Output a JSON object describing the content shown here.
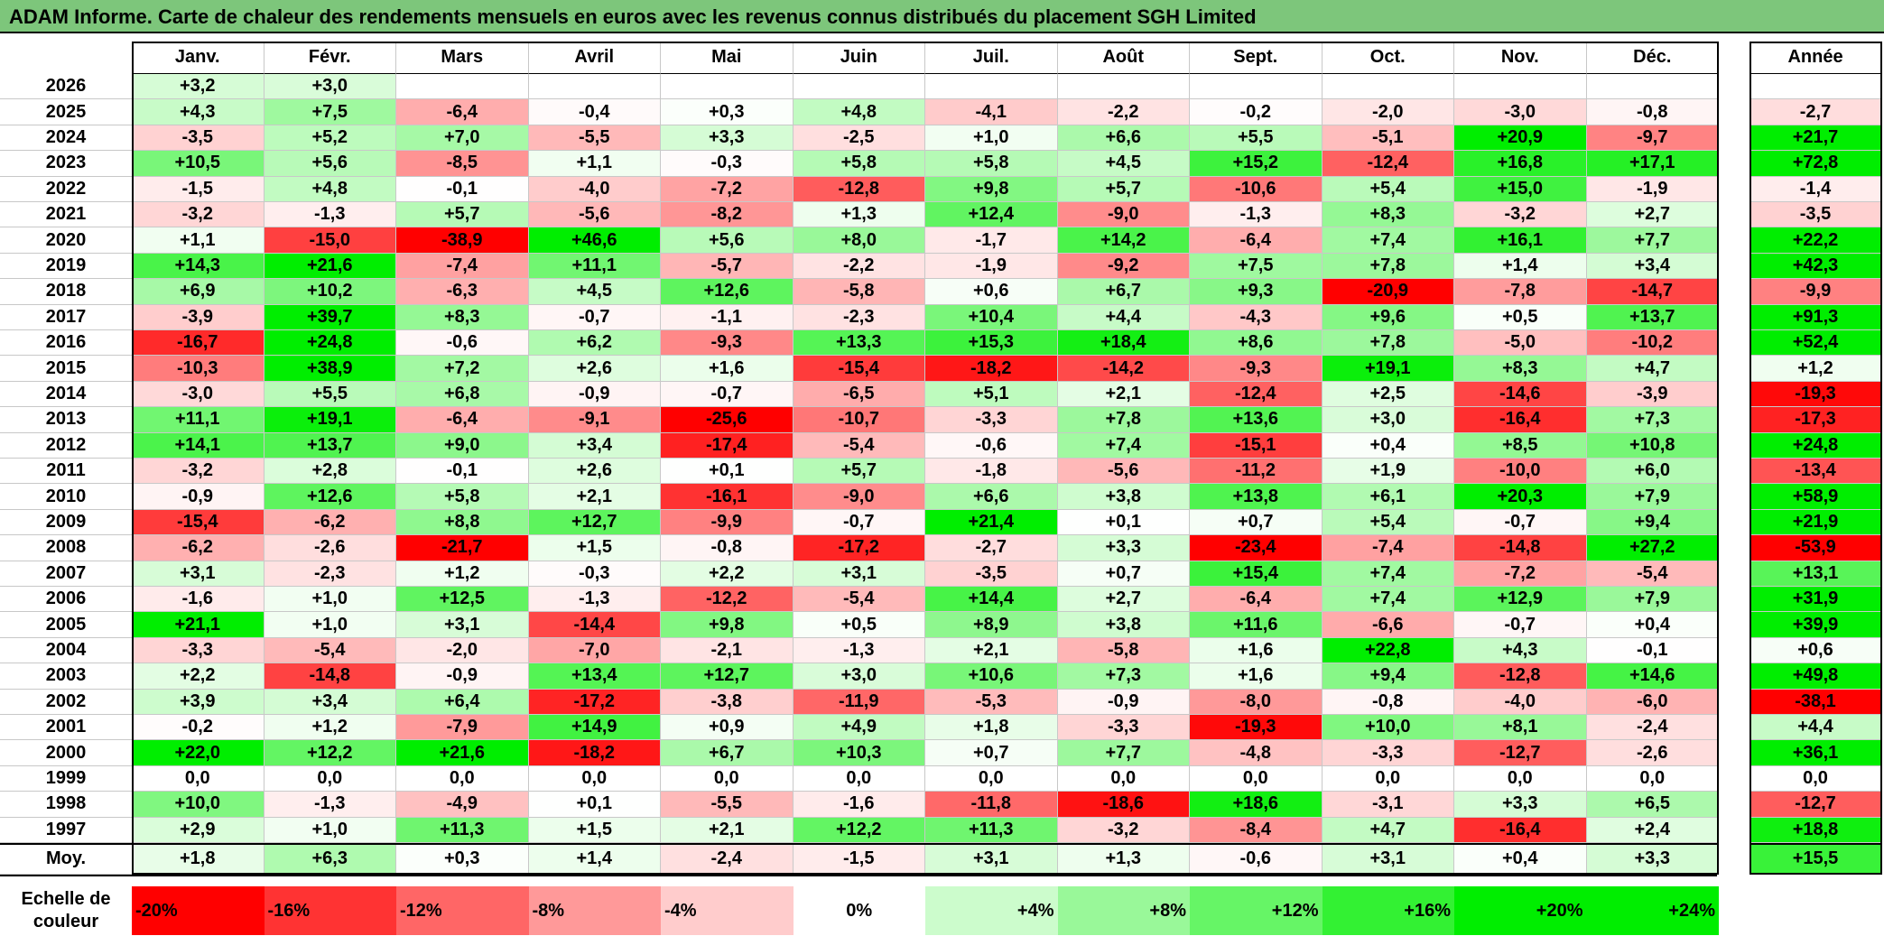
{
  "title": "ADAM Informe. Carte de chaleur des rendements mensuels en euros avec les revenus connus distribués du placement SGH Limited",
  "chart_data": {
    "type": "heatmap",
    "title": "ADAM Informe. Carte de chaleur des rendements mensuels en euros avec les revenus connus distribués du placement SGH Limited",
    "columns": [
      "Janv.",
      "Févr.",
      "Mars",
      "Avril",
      "Mai",
      "Juin",
      "Juil.",
      "Août",
      "Sept.",
      "Oct.",
      "Nov.",
      "Déc."
    ],
    "year_column_label": "Année",
    "rows": [
      {
        "year": "2026",
        "values": [
          "+3,2",
          "+3,0",
          "",
          "",
          "",
          "",
          "",
          "",
          "",
          "",
          "",
          ""
        ],
        "annual": ""
      },
      {
        "year": "2025",
        "values": [
          "+4,3",
          "+7,5",
          "-6,4",
          "-0,4",
          "+0,3",
          "+4,8",
          "-4,1",
          "-2,2",
          "-0,2",
          "-2,0",
          "-3,0",
          "-0,8"
        ],
        "annual": "-2,7"
      },
      {
        "year": "2024",
        "values": [
          "-3,5",
          "+5,2",
          "+7,0",
          "-5,5",
          "+3,3",
          "-2,5",
          "+1,0",
          "+6,6",
          "+5,5",
          "-5,1",
          "+20,9",
          "-9,7"
        ],
        "annual": "+21,7"
      },
      {
        "year": "2023",
        "values": [
          "+10,5",
          "+5,6",
          "-8,5",
          "+1,1",
          "-0,3",
          "+5,8",
          "+5,8",
          "+4,5",
          "+15,2",
          "-12,4",
          "+16,8",
          "+17,1"
        ],
        "annual": "+72,8"
      },
      {
        "year": "2022",
        "values": [
          "-1,5",
          "+4,8",
          "-0,1",
          "-4,0",
          "-7,2",
          "-12,8",
          "+9,8",
          "+5,7",
          "-10,6",
          "+5,4",
          "+15,0",
          "-1,9"
        ],
        "annual": "-1,4"
      },
      {
        "year": "2021",
        "values": [
          "-3,2",
          "-1,3",
          "+5,7",
          "-5,6",
          "-8,2",
          "+1,3",
          "+12,4",
          "-9,0",
          "-1,3",
          "+8,3",
          "-3,2",
          "+2,7"
        ],
        "annual": "-3,5"
      },
      {
        "year": "2020",
        "values": [
          "+1,1",
          "-15,0",
          "-38,9",
          "+46,6",
          "+5,6",
          "+8,0",
          "-1,7",
          "+14,2",
          "-6,4",
          "+7,4",
          "+16,1",
          "+7,7"
        ],
        "annual": "+22,2"
      },
      {
        "year": "2019",
        "values": [
          "+14,3",
          "+21,6",
          "-7,4",
          "+11,1",
          "-5,7",
          "-2,2",
          "-1,9",
          "-9,2",
          "+7,5",
          "+7,8",
          "+1,4",
          "+3,4"
        ],
        "annual": "+42,3"
      },
      {
        "year": "2018",
        "values": [
          "+6,9",
          "+10,2",
          "-6,3",
          "+4,5",
          "+12,6",
          "-5,8",
          "+0,6",
          "+6,7",
          "+9,3",
          "-20,9",
          "-7,8",
          "-14,7"
        ],
        "annual": "-9,9"
      },
      {
        "year": "2017",
        "values": [
          "-3,9",
          "+39,7",
          "+8,3",
          "-0,7",
          "-1,1",
          "-2,3",
          "+10,4",
          "+4,4",
          "-4,3",
          "+9,6",
          "+0,5",
          "+13,7"
        ],
        "annual": "+91,3"
      },
      {
        "year": "2016",
        "values": [
          "-16,7",
          "+24,8",
          "-0,6",
          "+6,2",
          "-9,3",
          "+13,3",
          "+15,3",
          "+18,4",
          "+8,6",
          "+7,8",
          "-5,0",
          "-10,2"
        ],
        "annual": "+52,4"
      },
      {
        "year": "2015",
        "values": [
          "-10,3",
          "+38,9",
          "+7,2",
          "+2,6",
          "+1,6",
          "-15,4",
          "-18,2",
          "-14,2",
          "-9,3",
          "+19,1",
          "+8,3",
          "+4,7"
        ],
        "annual": "+1,2"
      },
      {
        "year": "2014",
        "values": [
          "-3,0",
          "+5,5",
          "+6,8",
          "-0,9",
          "-0,7",
          "-6,5",
          "+5,1",
          "+2,1",
          "-12,4",
          "+2,5",
          "-14,6",
          "-3,9"
        ],
        "annual": "-19,3"
      },
      {
        "year": "2013",
        "values": [
          "+11,1",
          "+19,1",
          "-6,4",
          "-9,1",
          "-25,6",
          "-10,7",
          "-3,3",
          "+7,8",
          "+13,6",
          "+3,0",
          "-16,4",
          "+7,3"
        ],
        "annual": "-17,3"
      },
      {
        "year": "2012",
        "values": [
          "+14,1",
          "+13,7",
          "+9,0",
          "+3,4",
          "-17,4",
          "-5,4",
          "-0,6",
          "+7,4",
          "-15,1",
          "+0,4",
          "+8,5",
          "+10,8"
        ],
        "annual": "+24,8"
      },
      {
        "year": "2011",
        "values": [
          "-3,2",
          "+2,8",
          "-0,1",
          "+2,6",
          "+0,1",
          "+5,7",
          "-1,8",
          "-5,6",
          "-11,2",
          "+1,9",
          "-10,0",
          "+6,0"
        ],
        "annual": "-13,4"
      },
      {
        "year": "2010",
        "values": [
          "-0,9",
          "+12,6",
          "+5,8",
          "+2,1",
          "-16,1",
          "-9,0",
          "+6,6",
          "+3,8",
          "+13,8",
          "+6,1",
          "+20,3",
          "+7,9"
        ],
        "annual": "+58,9"
      },
      {
        "year": "2009",
        "values": [
          "-15,4",
          "-6,2",
          "+8,8",
          "+12,7",
          "-9,9",
          "-0,7",
          "+21,4",
          "+0,1",
          "+0,7",
          "+5,4",
          "-0,7",
          "+9,4"
        ],
        "annual": "+21,9"
      },
      {
        "year": "2008",
        "values": [
          "-6,2",
          "-2,6",
          "-21,7",
          "+1,5",
          "-0,8",
          "-17,2",
          "-2,7",
          "+3,3",
          "-23,4",
          "-7,4",
          "-14,8",
          "+27,2"
        ],
        "annual": "-53,9"
      },
      {
        "year": "2007",
        "values": [
          "+3,1",
          "-2,3",
          "+1,2",
          "-0,3",
          "+2,2",
          "+3,1",
          "-3,5",
          "+0,7",
          "+15,4",
          "+7,4",
          "-7,2",
          "-5,4"
        ],
        "annual": "+13,1"
      },
      {
        "year": "2006",
        "values": [
          "-1,6",
          "+1,0",
          "+12,5",
          "-1,3",
          "-12,2",
          "-5,4",
          "+14,4",
          "+2,7",
          "-6,4",
          "+7,4",
          "+12,9",
          "+7,9"
        ],
        "annual": "+31,9"
      },
      {
        "year": "2005",
        "values": [
          "+21,1",
          "+1,0",
          "+3,1",
          "-14,4",
          "+9,8",
          "+0,5",
          "+8,9",
          "+3,8",
          "+11,6",
          "-6,6",
          "-0,7",
          "+0,4"
        ],
        "annual": "+39,9"
      },
      {
        "year": "2004",
        "values": [
          "-3,3",
          "-5,4",
          "-2,0",
          "-7,0",
          "-2,1",
          "-1,3",
          "+2,1",
          "-5,8",
          "+1,6",
          "+22,8",
          "+4,3",
          "-0,1"
        ],
        "annual": "+0,6"
      },
      {
        "year": "2003",
        "values": [
          "+2,2",
          "-14,8",
          "-0,9",
          "+13,4",
          "+12,7",
          "+3,0",
          "+10,6",
          "+7,3",
          "+1,6",
          "+9,4",
          "-12,8",
          "+14,6"
        ],
        "annual": "+49,8"
      },
      {
        "year": "2002",
        "values": [
          "+3,9",
          "+3,4",
          "+6,4",
          "-17,2",
          "-3,8",
          "-11,9",
          "-5,3",
          "-0,9",
          "-8,0",
          "-0,8",
          "-4,0",
          "-6,0"
        ],
        "annual": "-38,1"
      },
      {
        "year": "2001",
        "values": [
          "-0,2",
          "+1,2",
          "-7,9",
          "+14,9",
          "+0,9",
          "+4,9",
          "+1,8",
          "-3,3",
          "-19,3",
          "+10,0",
          "+8,1",
          "-2,4"
        ],
        "annual": "+4,4"
      },
      {
        "year": "2000",
        "values": [
          "+22,0",
          "+12,2",
          "+21,6",
          "-18,2",
          "+6,7",
          "+10,3",
          "+0,7",
          "+7,7",
          "-4,8",
          "-3,3",
          "-12,7",
          "-2,6"
        ],
        "annual": "+36,1"
      },
      {
        "year": "1999",
        "values": [
          "0,0",
          "0,0",
          "0,0",
          "0,0",
          "0,0",
          "0,0",
          "0,0",
          "0,0",
          "0,0",
          "0,0",
          "0,0",
          "0,0"
        ],
        "annual": "0,0"
      },
      {
        "year": "1998",
        "values": [
          "+10,0",
          "-1,3",
          "-4,9",
          "+0,1",
          "-5,5",
          "-1,6",
          "-11,8",
          "-18,6",
          "+18,6",
          "-3,1",
          "+3,3",
          "+6,5"
        ],
        "annual": "-12,7"
      },
      {
        "year": "1997",
        "values": [
          "+2,9",
          "+1,0",
          "+11,3",
          "+1,5",
          "+2,1",
          "+12,2",
          "+11,3",
          "-3,2",
          "-8,4",
          "+4,7",
          "-16,4",
          "+2,4"
        ],
        "annual": "+18,8"
      }
    ],
    "average": {
      "label": "Moy.",
      "values": [
        "+1,8",
        "+6,3",
        "+0,3",
        "+1,4",
        "-2,4",
        "-1,5",
        "+3,1",
        "+1,3",
        "-0,6",
        "+3,1",
        "+0,4",
        "+3,3"
      ],
      "annual": "+15,5"
    },
    "scale": {
      "label": "Echelle de couleur",
      "steps": [
        "-20%",
        "-16%",
        "-12%",
        "-8%",
        "-4%",
        "0%",
        "+4%",
        "+8%",
        "+12%",
        "+16%",
        "+20%",
        "+24%"
      ],
      "step_values": [
        -20,
        -16,
        -12,
        -8,
        -4,
        0,
        4,
        8,
        12,
        16,
        20,
        24
      ]
    },
    "colors": {
      "negative_max": "#ff0000",
      "neutral": "#ffffff",
      "positive_max": "#00ee00",
      "title_bar": "#7dc67b"
    }
  }
}
